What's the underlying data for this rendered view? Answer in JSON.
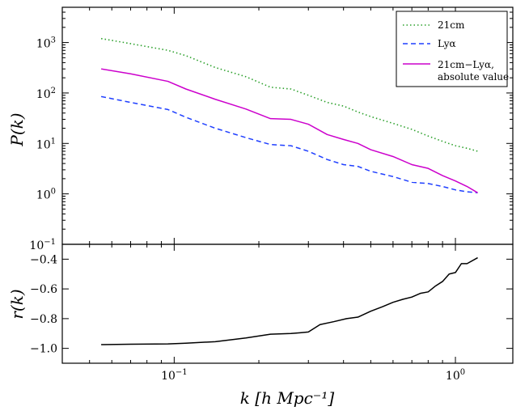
{
  "chart_data": [
    {
      "type": "line",
      "panel": "top",
      "xscale": "log",
      "yscale": "log",
      "xlim": [
        0.04,
        1.6
      ],
      "ylim": [
        0.1,
        5000
      ],
      "ylabel": "P(k)",
      "y_tick_labels": [
        {
          "value": 0.1,
          "base": "10",
          "exp": "-1"
        },
        {
          "value": 1,
          "base": "10",
          "exp": "0"
        },
        {
          "value": 10,
          "base": "10",
          "exp": "1"
        },
        {
          "value": 100,
          "base": "10",
          "exp": "2"
        },
        {
          "value": 1000,
          "base": "10",
          "exp": "3"
        }
      ],
      "legend_position": "top-right",
      "x": [
        0.055,
        0.07,
        0.095,
        0.11,
        0.14,
        0.18,
        0.22,
        0.26,
        0.3,
        0.35,
        0.4,
        0.45,
        0.5,
        0.6,
        0.7,
        0.8,
        0.9,
        1.0,
        1.1,
        1.2
      ],
      "series": [
        {
          "name": "21cm",
          "legend_label": "21cm",
          "color": "#2ca02c",
          "style": "dotted",
          "values": [
            1200,
            950,
            700,
            550,
            320,
            210,
            130,
            120,
            90,
            65,
            55,
            42,
            34,
            25,
            19,
            14,
            11,
            9,
            8,
            7
          ]
        },
        {
          "name": "Lyα",
          "legend_label": "Lyα",
          "color": "#1f3fff",
          "style": "dashed",
          "values": [
            85,
            65,
            47,
            33,
            20,
            13,
            9.5,
            9,
            7,
            4.8,
            3.8,
            3.5,
            2.8,
            2.2,
            1.7,
            1.6,
            1.4,
            1.2,
            1.1,
            1.05
          ]
        },
        {
          "name": "21cm−Lyα, absolute value",
          "legend_label_line1": "21cm−Lyα,",
          "legend_label_line2": "absolute value",
          "color": "#cc00cc",
          "style": "solid",
          "values": [
            300,
            240,
            170,
            120,
            75,
            48,
            31,
            30,
            24,
            15,
            12,
            10,
            7.5,
            5.5,
            3.8,
            3.2,
            2.3,
            1.8,
            1.4,
            1.05
          ]
        }
      ]
    },
    {
      "type": "line",
      "panel": "bottom",
      "xscale": "log",
      "yscale": "linear",
      "xlim": [
        0.04,
        1.6
      ],
      "ylim": [
        -1.1,
        -0.3
      ],
      "ylabel": "r(k)",
      "xlabel": "k [h Mpc⁻¹]",
      "y_ticks": [
        -1.0,
        -0.8,
        -0.6,
        -0.4
      ],
      "y_tick_labels": [
        "−1.0",
        "−0.8",
        "−0.6",
        "−0.4"
      ],
      "x_tick_labels": [
        {
          "value": 0.1,
          "base": "10",
          "exp": "-1"
        },
        {
          "value": 1,
          "base": "10",
          "exp": "0"
        }
      ],
      "series": [
        {
          "name": "r(k)",
          "color": "#000000",
          "style": "solid",
          "x": [
            0.055,
            0.07,
            0.095,
            0.11,
            0.14,
            0.18,
            0.22,
            0.26,
            0.28,
            0.3,
            0.33,
            0.37,
            0.41,
            0.45,
            0.5,
            0.55,
            0.6,
            0.65,
            0.7,
            0.75,
            0.8,
            0.85,
            0.9,
            0.95,
            1.0,
            1.05,
            1.1,
            1.2
          ],
          "values": [
            -0.975,
            -0.972,
            -0.97,
            -0.965,
            -0.955,
            -0.93,
            -0.905,
            -0.9,
            -0.895,
            -0.89,
            -0.84,
            -0.82,
            -0.8,
            -0.79,
            -0.75,
            -0.72,
            -0.69,
            -0.67,
            -0.655,
            -0.63,
            -0.62,
            -0.58,
            -0.55,
            -0.5,
            -0.49,
            -0.43,
            -0.43,
            -0.39
          ]
        }
      ]
    }
  ]
}
